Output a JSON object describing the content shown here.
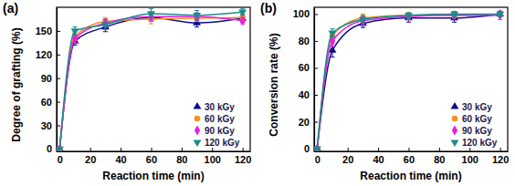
{
  "chart_data": [
    {
      "type": "line",
      "title": "(a)",
      "x_label": "Reaction time (min)",
      "y_label": "Degree of grafting (%)",
      "x": [
        0,
        10,
        30,
        60,
        90,
        120
      ],
      "xlim": [
        -2,
        125
      ],
      "xticks": [
        0,
        20,
        40,
        60,
        80,
        100,
        120
      ],
      "ylim": [
        -3,
        180
      ],
      "yticks": [
        0,
        30,
        60,
        90,
        120,
        150
      ],
      "legend": "lower right",
      "series": [
        {
          "name": "30 kGy",
          "color": "#0d0d8a",
          "marker": "triangle-up",
          "values": [
            0,
            137,
            155,
            167,
            160,
            166
          ],
          "errors": [
            0,
            5,
            6,
            5,
            5,
            5
          ]
        },
        {
          "name": "60 kGy",
          "color": "#f7921e",
          "marker": "circle",
          "values": [
            0,
            143,
            162,
            165,
            166,
            167
          ],
          "errors": [
            0,
            5,
            5,
            6,
            4,
            4
          ]
        },
        {
          "name": "90 kGy",
          "color": "#e81ee0",
          "marker": "diamond",
          "values": [
            0,
            140,
            160,
            168,
            168,
            163
          ],
          "errors": [
            0,
            5,
            5,
            5,
            5,
            4
          ]
        },
        {
          "name": "120 kGy",
          "color": "#1a8c8c",
          "marker": "triangle-down",
          "values": [
            0,
            150,
            158,
            172,
            170,
            174
          ],
          "errors": [
            0,
            5,
            6,
            6,
            6,
            4
          ]
        }
      ]
    },
    {
      "type": "line",
      "title": "(b)",
      "x_label": "Reaction time (min)",
      "y_label": "Conversion rate (%)",
      "x": [
        0,
        10,
        30,
        60,
        90,
        120
      ],
      "xlim": [
        -2,
        125
      ],
      "xticks": [
        0,
        20,
        40,
        60,
        80,
        100,
        120
      ],
      "ylim": [
        -2,
        105
      ],
      "yticks": [
        0,
        20,
        40,
        60,
        80,
        100
      ],
      "legend": "lower right",
      "series": [
        {
          "name": "30 kGy",
          "color": "#0d0d8a",
          "marker": "triangle-up",
          "values": [
            0,
            73,
            93,
            97,
            97,
            100
          ],
          "errors": [
            0,
            5,
            3,
            3,
            3,
            2
          ]
        },
        {
          "name": "60 kGy",
          "color": "#f7921e",
          "marker": "circle",
          "values": [
            0,
            84,
            97,
            99,
            99,
            100
          ],
          "errors": [
            0,
            3,
            3,
            2,
            2,
            2
          ]
        },
        {
          "name": "90 kGy",
          "color": "#e81ee0",
          "marker": "diamond",
          "values": [
            0,
            80,
            95,
            98,
            99,
            99
          ],
          "errors": [
            0,
            4,
            3,
            2,
            2,
            3
          ]
        },
        {
          "name": "120 kGy",
          "color": "#1a8c8c",
          "marker": "triangle-down",
          "values": [
            0,
            86,
            96,
            99,
            100,
            100
          ],
          "errors": [
            0,
            3,
            3,
            2,
            2,
            2
          ]
        }
      ]
    }
  ]
}
